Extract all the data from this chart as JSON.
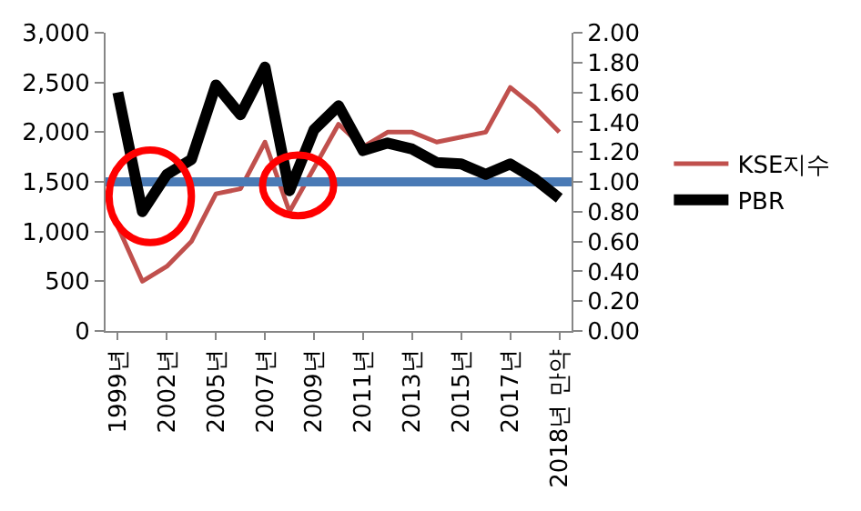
{
  "chart_data": {
    "type": "line",
    "categories": [
      "1999년",
      null,
      "2002년",
      null,
      "2005년",
      null,
      "2007년",
      null,
      "2009년",
      null,
      "2011년",
      null,
      "2013년",
      null,
      "2015년",
      null,
      "2017년",
      null,
      "2018년 만약"
    ],
    "series": [
      {
        "name": "KSE지수",
        "color": "#c0504d",
        "values": [
          1050,
          500,
          650,
          900,
          1380,
          1430,
          1900,
          1200,
          1640,
          2080,
          1850,
          2000,
          2000,
          1900,
          1950,
          2000,
          2450,
          2250,
          2000
        ]
      },
      {
        "name": "PBR",
        "color": "#000000",
        "axis": "y2",
        "values": [
          1.6,
          0.8,
          1.05,
          1.15,
          1.65,
          1.45,
          1.77,
          0.94,
          1.35,
          1.51,
          1.21,
          1.26,
          1.22,
          1.13,
          1.12,
          1.05,
          1.12,
          1.02,
          0.89
        ]
      }
    ],
    "ylim": [
      0,
      3000
    ],
    "yticks": [
      {
        "value": 0,
        "label": "0"
      },
      {
        "value": 500,
        "label": "500"
      },
      {
        "value": 1000,
        "label": "1,000"
      },
      {
        "value": 1500,
        "label": "1,500"
      },
      {
        "value": 2000,
        "label": "2,000"
      },
      {
        "value": 2500,
        "label": "2,500"
      },
      {
        "value": 3000,
        "label": "3,000"
      }
    ],
    "y2lim": [
      0,
      2
    ],
    "y2ticks": [
      {
        "value": 0,
        "label": "0.00"
      },
      {
        "value": 0.2,
        "label": "0.20"
      },
      {
        "value": 0.4,
        "label": "0.40"
      },
      {
        "value": 0.6,
        "label": "0.60"
      },
      {
        "value": 0.8,
        "label": "0.80"
      },
      {
        "value": 1,
        "label": "1.00"
      },
      {
        "value": 1.2,
        "label": "1.20"
      },
      {
        "value": 1.4,
        "label": "1.40"
      },
      {
        "value": 1.6,
        "label": "1.60"
      },
      {
        "value": 1.8,
        "label": "1.80"
      },
      {
        "value": 2,
        "label": "2.00"
      }
    ],
    "ref_lines": [
      {
        "axis": "y2",
        "value": 1,
        "label": null,
        "color": "#4a7ab5"
      }
    ],
    "legend": "right",
    "marker": "none",
    "line_style": "solid"
  }
}
